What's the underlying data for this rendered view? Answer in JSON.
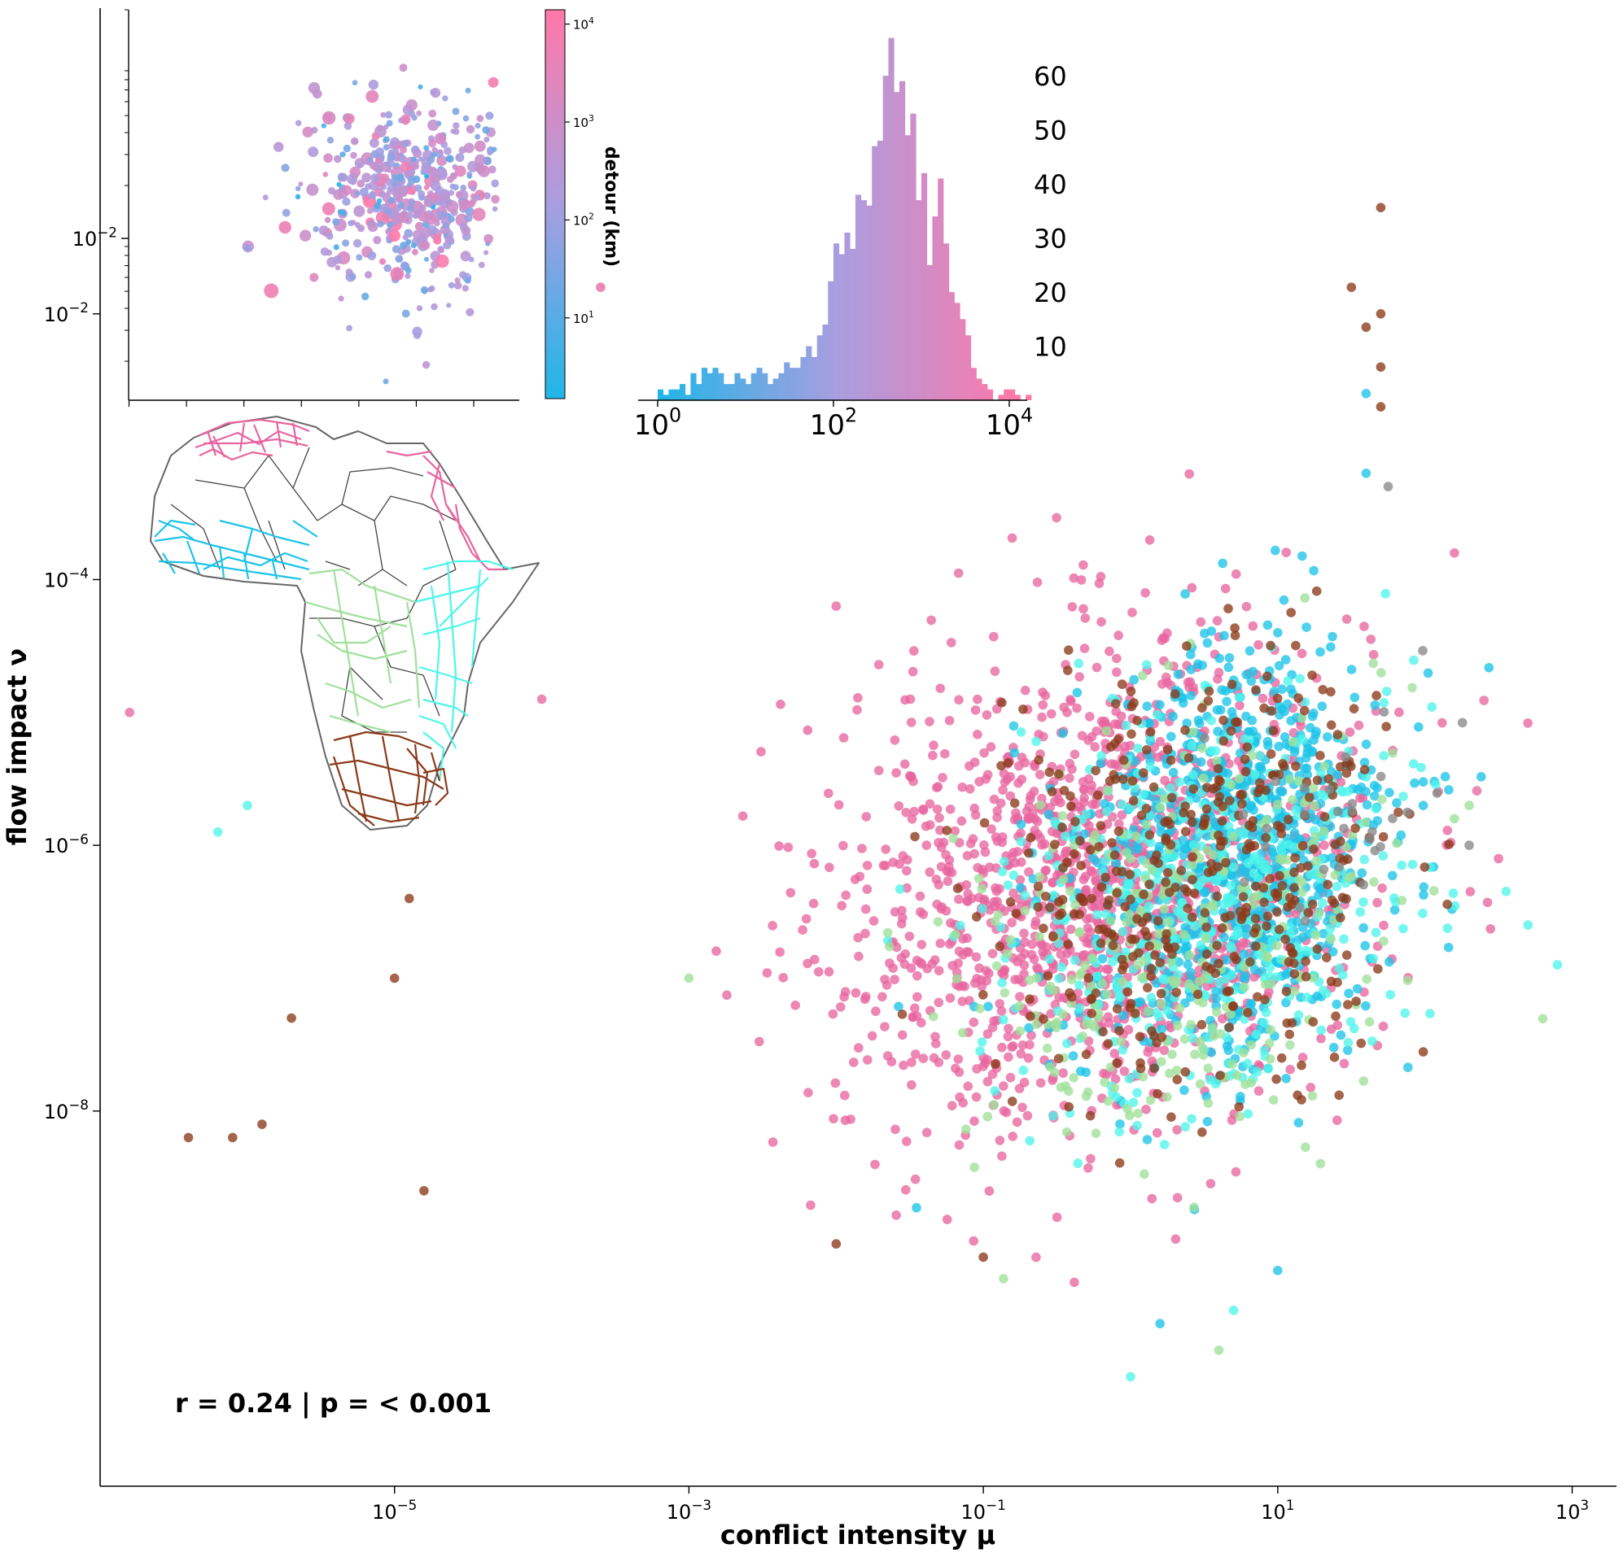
{
  "chart_data": [
    {
      "type": "scatter",
      "xlabel": "conflict intensity μ",
      "ylabel": "flow impact ν",
      "xscale": "log",
      "yscale": "log",
      "xlim": [
        1e-07,
        2000
      ],
      "ylim": [
        1.5e-11,
        2
      ],
      "x_ticks": [
        {
          "value": 1e-05,
          "base": "10",
          "exp": "−5"
        },
        {
          "value": 0.001,
          "base": "10",
          "exp": "−3"
        },
        {
          "value": 0.1,
          "base": "10",
          "exp": "−1"
        },
        {
          "value": 10,
          "base": "10",
          "exp": "1"
        },
        {
          "value": 1000,
          "base": "10",
          "exp": "3"
        }
      ],
      "y_ticks": [
        {
          "value": 1e-08,
          "base": "10",
          "exp": "−8"
        },
        {
          "value": 1e-06,
          "base": "10",
          "exp": "−6"
        },
        {
          "value": 0.0001,
          "base": "10",
          "exp": "−4"
        },
        {
          "value": 0.01,
          "base": "10",
          "exp": "−2"
        }
      ],
      "annotation": "r = 0.24 | p = < 0.001",
      "grid": false,
      "series": [
        {
          "color": "#e8659f",
          "center": [
            -0.2,
            -6.3
          ],
          "spread": [
            0.9,
            0.9
          ],
          "count": 1400,
          "points": [
            [
              -3.6,
              -1.8
            ],
            [
              0.1,
              -4.1
            ],
            [
              0.6,
              -4.7
            ],
            [
              2.2,
              -3.8
            ],
            [
              -4.0,
              -4.9
            ],
            [
              -6.8,
              -5.0
            ],
            [
              -2.0,
              -4.2
            ],
            [
              2.5,
              -6.1
            ],
            [
              -0.5,
              -8.8
            ]
          ]
        },
        {
          "color": "#1cc4e8",
          "center": [
            0.7,
            -6.1
          ],
          "spread": [
            0.55,
            0.8
          ],
          "count": 850,
          "points": [
            [
              1.6,
              -2.6
            ],
            [
              1.6,
              -3.2
            ],
            [
              0.4,
              -7.1
            ],
            [
              0.2,
              -9.6
            ],
            [
              1.0,
              -9.2
            ],
            [
              1.0,
              -4.4
            ]
          ]
        },
        {
          "color": "#4ef5eb",
          "center": [
            0.5,
            -6.4
          ],
          "spread": [
            0.65,
            0.75
          ],
          "count": 500,
          "points": [
            [
              2.7,
              -6.6
            ],
            [
              2.9,
              -6.9
            ],
            [
              -6.0,
              -5.7
            ],
            [
              -6.2,
              -5.9
            ],
            [
              0.7,
              -9.5
            ],
            [
              0.0,
              -10.0
            ]
          ]
        },
        {
          "color": "#9fe09a",
          "center": [
            0.3,
            -6.7
          ],
          "spread": [
            0.7,
            0.8
          ],
          "count": 320,
          "points": [
            [
              2.2,
              -5.8
            ],
            [
              2.3,
              -5.7
            ],
            [
              -3.0,
              -7.0
            ],
            [
              0.6,
              -9.8
            ]
          ]
        },
        {
          "color": "#8b3a1a",
          "center": [
            0.5,
            -6.2
          ],
          "spread": [
            0.7,
            0.75
          ],
          "count": 420,
          "points": [
            [
              1.7,
              -1.2
            ],
            [
              1.7,
              -2.0
            ],
            [
              1.6,
              -2.1
            ],
            [
              1.5,
              -1.8
            ],
            [
              1.7,
              -2.4
            ],
            [
              1.7,
              -2.7
            ],
            [
              -6.1,
              -8.2
            ],
            [
              -5.9,
              -8.1
            ],
            [
              -6.4,
              -8.2
            ],
            [
              -5.0,
              -7.0
            ],
            [
              -4.9,
              -6.4
            ],
            [
              -5.7,
              -7.3
            ],
            [
              -4.8,
              -8.6
            ],
            [
              -2.0,
              -9.0
            ],
            [
              -1.0,
              -9.1
            ]
          ]
        },
        {
          "color": "#888888",
          "center": [
            1.5,
            -5.7
          ],
          "spread": [
            0.4,
            0.5
          ],
          "count": 30,
          "points": [
            [
              1.75,
              -3.3
            ],
            [
              2.3,
              -6.0
            ]
          ]
        }
      ]
    },
    {
      "type": "scatter",
      "xscale": "log",
      "yscale": "log",
      "ylim": [
        0.0012,
        0.2
      ],
      "xlim": [
        1.5e-05,
        5000
      ],
      "y_ticks": [
        {
          "value": 0.01,
          "base": "10",
          "exp": "−2"
        }
      ],
      "colorbar": {
        "label": "detour (km)",
        "scale": "log",
        "range": [
          1.5,
          14000
        ],
        "colors": [
          "#1fb6e8",
          "#a99ee0",
          "#ff78a8"
        ],
        "ticks": [
          {
            "value": 10,
            "base": "10",
            "exp": "1"
          },
          {
            "value": 100,
            "base": "10",
            "exp": "2"
          },
          {
            "value": 1000,
            "base": "10",
            "exp": "3"
          },
          {
            "value": 10000,
            "base": "10",
            "exp": "4"
          }
        ]
      },
      "center": [
        1.4,
        -1.75
      ],
      "spread": [
        1.2,
        0.28
      ],
      "count": 520
    },
    {
      "type": "bar",
      "histogram": true,
      "xscale": "log",
      "xlim": [
        0.6,
        16000
      ],
      "ylim": [
        0,
        68
      ],
      "x_ticks": [
        {
          "value": 1,
          "base": "10",
          "exp": "0"
        },
        {
          "value": 100,
          "base": "10",
          "exp": "2"
        },
        {
          "value": 10000,
          "base": "10",
          "exp": "4"
        }
      ],
      "y_ticks": [
        10,
        20,
        30,
        40,
        50,
        60
      ],
      "bin_log_start": 0,
      "bin_log_width": 0.0625,
      "counts": [
        2,
        1,
        2,
        2,
        3,
        1,
        5,
        3,
        6,
        5,
        6,
        5,
        3,
        3,
        5,
        4,
        3,
        5,
        6,
        5,
        3,
        4,
        5,
        7,
        6,
        6,
        8,
        10,
        8,
        12,
        14,
        22,
        29,
        27,
        31,
        28,
        38,
        37,
        36,
        47,
        48,
        60,
        67,
        57,
        59,
        49,
        53,
        37,
        42,
        25,
        34,
        41,
        29,
        20,
        18,
        15,
        12,
        6,
        4,
        3,
        2,
        0,
        1,
        2,
        2,
        1,
        0,
        1
      ]
    }
  ]
}
